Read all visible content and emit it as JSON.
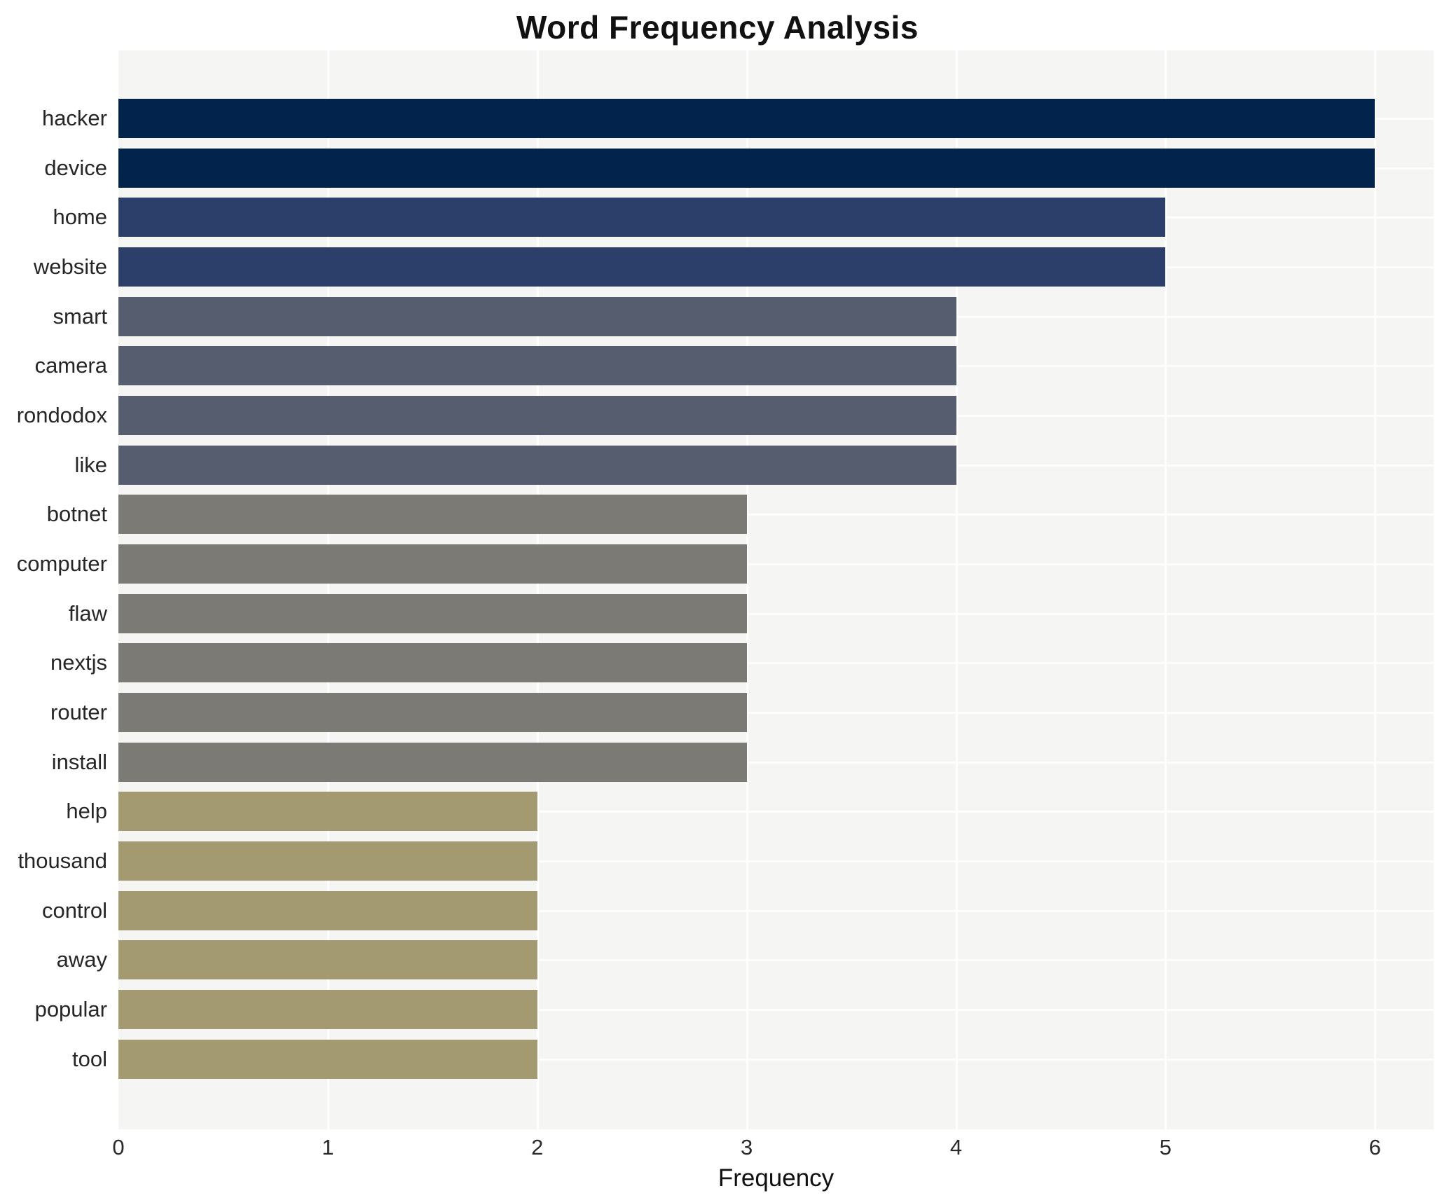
{
  "chart_data": {
    "type": "bar",
    "orientation": "horizontal",
    "title": "Word Frequency Analysis",
    "xlabel": "Frequency",
    "ylabel": "",
    "categories": [
      "hacker",
      "device",
      "home",
      "website",
      "smart",
      "camera",
      "rondodox",
      "like",
      "botnet",
      "computer",
      "flaw",
      "nextjs",
      "router",
      "install",
      "help",
      "thousand",
      "control",
      "away",
      "popular",
      "tool"
    ],
    "values": [
      6,
      6,
      5,
      5,
      4,
      4,
      4,
      4,
      3,
      3,
      3,
      3,
      3,
      3,
      2,
      2,
      2,
      2,
      2,
      2
    ],
    "xticks": [
      0,
      1,
      2,
      3,
      4,
      5,
      6
    ],
    "xlim": [
      0,
      6.28
    ],
    "grid": true,
    "legend": false,
    "colors_by_value": {
      "6": "#02234c",
      "5": "#2c3f6b",
      "4": "#565d6e",
      "3": "#7b7a74",
      "2": "#a49a71"
    },
    "plot_background": "#f5f5f4",
    "gridline_color": "#ffffff"
  }
}
